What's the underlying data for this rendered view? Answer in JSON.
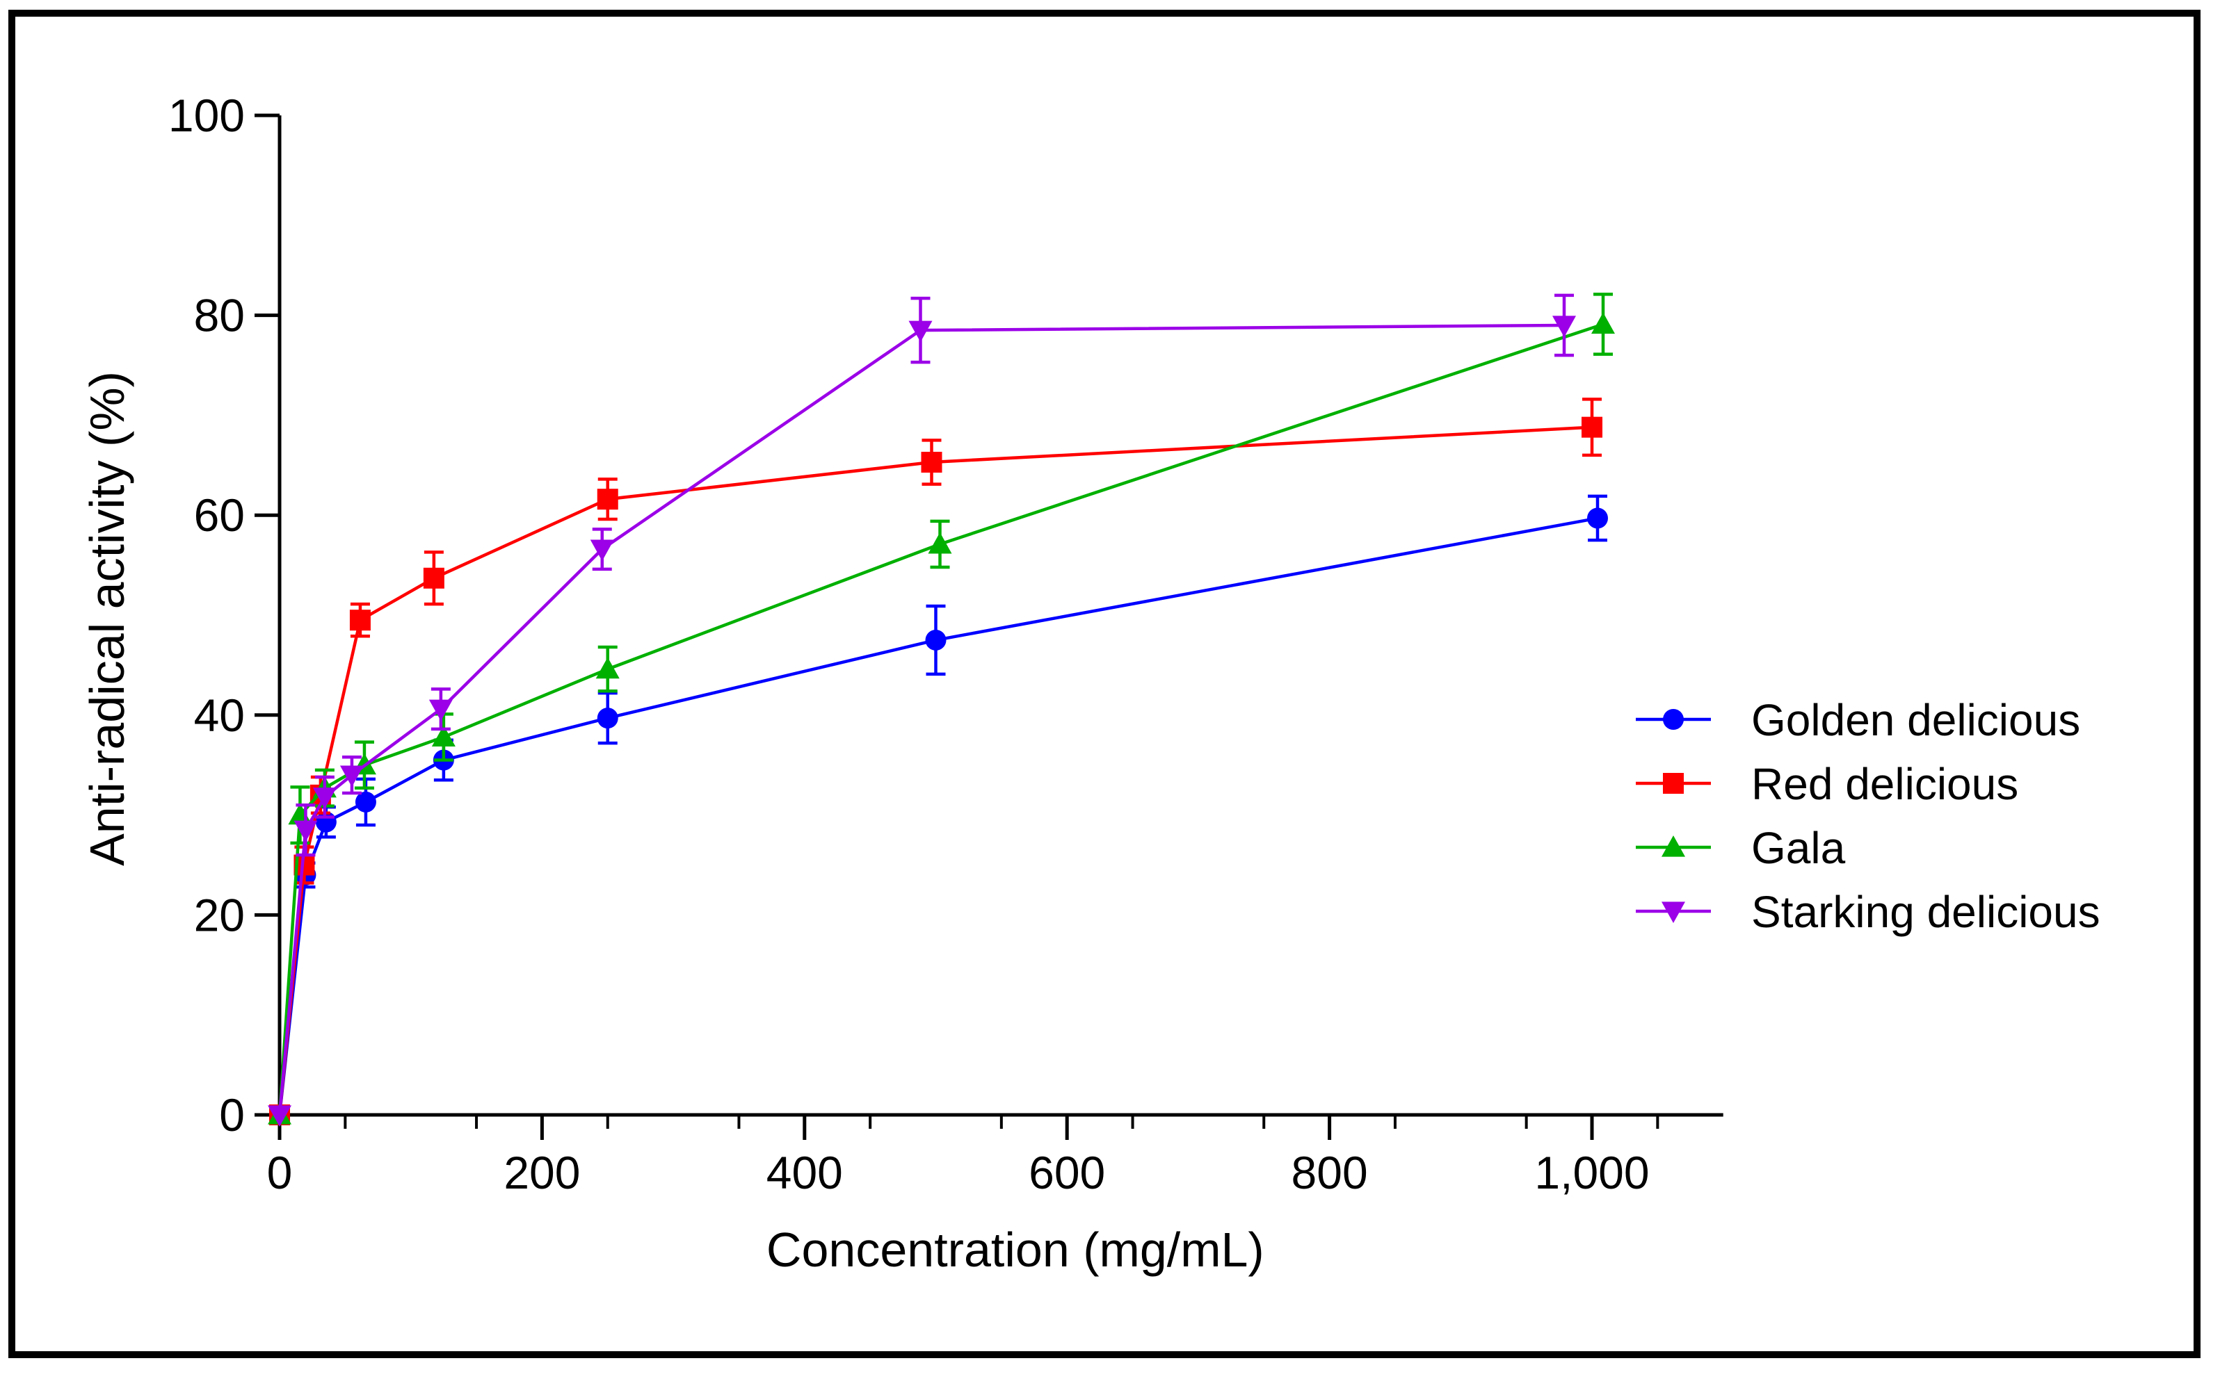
{
  "chart_data": {
    "type": "line",
    "title": "",
    "xlabel": "Concentration (mg/mL)",
    "ylabel": "Anti-radical activity (%)",
    "xlim": [
      0,
      1100
    ],
    "ylim": [
      0,
      100
    ],
    "xticks": [
      0,
      200,
      400,
      600,
      800,
      1000
    ],
    "xtick_labels": [
      "0",
      "200",
      "400",
      "600",
      "800",
      "1,000"
    ],
    "yticks": [
      0,
      20,
      40,
      60,
      80,
      100
    ],
    "ytick_labels": [
      "0",
      "20",
      "40",
      "60",
      "80",
      "100"
    ],
    "legend_position": "right",
    "series": [
      {
        "name": "Golden delicious",
        "color": "#0000ff",
        "marker": "circle",
        "x": [
          0,
          15.6,
          31.2,
          62.5,
          125,
          250,
          500,
          1000
        ],
        "y": [
          0,
          24.0,
          29.3,
          31.3,
          35.5,
          39.7,
          47.5,
          59.7
        ],
        "err": [
          0,
          1.2,
          1.5,
          2.3,
          2.0,
          2.5,
          3.4,
          2.2
        ]
      },
      {
        "name": "Red delicious",
        "color": "#ff0000",
        "marker": "square",
        "x": [
          0,
          15.6,
          31.2,
          62.5,
          125,
          250,
          500,
          1000
        ],
        "y": [
          0,
          25.0,
          32.0,
          49.5,
          53.7,
          61.6,
          65.3,
          68.8
        ],
        "err": [
          0,
          1.8,
          1.8,
          1.6,
          2.6,
          2.0,
          2.2,
          2.8
        ]
      },
      {
        "name": "Gala",
        "color": "#00b000",
        "marker": "triangle-up",
        "x": [
          0,
          15.6,
          31.2,
          62.5,
          125,
          250,
          500,
          1000
        ],
        "y": [
          0,
          30.0,
          32.7,
          35.0,
          37.8,
          44.6,
          57.1,
          79.1
        ],
        "err": [
          0,
          2.8,
          1.8,
          2.3,
          2.3,
          2.2,
          2.3,
          3.0
        ]
      },
      {
        "name": "Starking delicious",
        "color": "#9b00e8",
        "marker": "triangle-down",
        "x": [
          0,
          15.6,
          31.2,
          62.5,
          125,
          250,
          500,
          1000
        ],
        "y": [
          0,
          28.5,
          31.8,
          34.0,
          40.6,
          56.6,
          78.5,
          79.0
        ],
        "err": [
          0,
          2.5,
          2.0,
          1.8,
          2.0,
          2.0,
          3.2,
          3.0
        ]
      }
    ]
  }
}
